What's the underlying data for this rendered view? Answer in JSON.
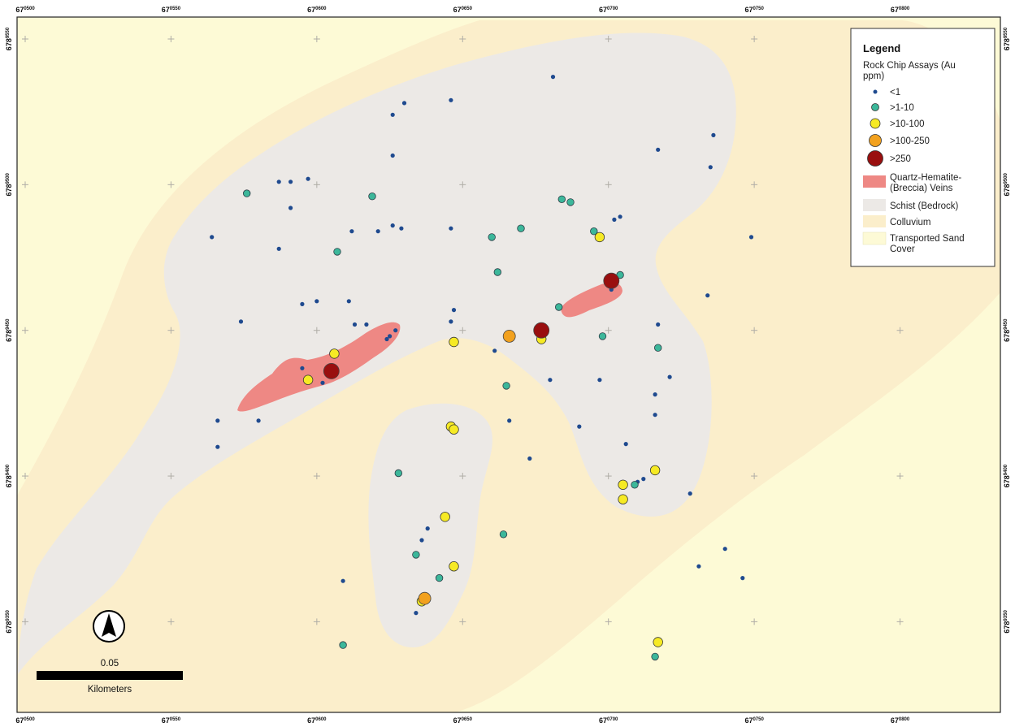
{
  "colors": {
    "sand": "#fdfad6",
    "colluvium": "#fbeecb",
    "schist": "#ece9e6",
    "veins": "#ee8884",
    "lt1": "#1f4a8f",
    "1_10": "#3cb79a",
    "10_100": "#f6ea24",
    "100_250": "#f2a11e",
    "gt250": "#990f0f"
  },
  "axes": {
    "top_ticks": [
      {
        "main": "67",
        "sup": "0500"
      },
      {
        "main": "67",
        "sup": "0550"
      },
      {
        "main": "67",
        "sup": "0600"
      },
      {
        "main": "67",
        "sup": "0650"
      },
      {
        "main": "67",
        "sup": "0700"
      },
      {
        "main": "67",
        "sup": "0750"
      },
      {
        "main": "67",
        "sup": "0800"
      }
    ],
    "bottom_ticks": [
      {
        "main": "67",
        "sup": "0500"
      },
      {
        "main": "67",
        "sup": "0550"
      },
      {
        "main": "67",
        "sup": "0600"
      },
      {
        "main": "67",
        "sup": "0650"
      },
      {
        "main": "67",
        "sup": "0700"
      },
      {
        "main": "67",
        "sup": "0750"
      },
      {
        "main": "67",
        "sup": "0800"
      }
    ],
    "side_ticks": [
      {
        "main": "678",
        "sup": "9550"
      },
      {
        "main": "678",
        "sup": "9500"
      },
      {
        "main": "678",
        "sup": "9450"
      },
      {
        "main": "678",
        "sup": "9400"
      },
      {
        "main": "678",
        "sup": "9350"
      }
    ]
  },
  "legend": {
    "title": "Legend",
    "subtitle_line1": "Rock Chip Assays (Au",
    "subtitle_line2": "ppm)",
    "classes": [
      {
        "label": "<1",
        "color_key": "lt1"
      },
      {
        "label": ">1-10",
        "color_key": "1_10"
      },
      {
        "label": ">10-100",
        "color_key": "10_100"
      },
      {
        "label": ">100-250",
        "color_key": "100_250"
      },
      {
        "label": ">250",
        "color_key": "gt250"
      }
    ],
    "veins_line1": "Quartz-Hematite-",
    "veins_line2": "(Breccia) Veins",
    "schist": "Schist (Bedrock)",
    "colluvium": "Colluvium",
    "sand_line1": "Transported Sand",
    "sand_line2": "Cover"
  },
  "scale_bar": {
    "value": "0.05",
    "unit": "Kilometers"
  },
  "north_arrow": "north-arrow-icon",
  "samples": {
    "lt1": [
      [
        67564,
        6789482
      ],
      [
        67574,
        6789453
      ],
      [
        67566,
        6789419
      ],
      [
        67566,
        6789410
      ],
      [
        67580,
        6789419
      ],
      [
        67587,
        6789501
      ],
      [
        67591,
        6789501
      ],
      [
        67597,
        6789502
      ],
      [
        67591,
        6789492
      ],
      [
        67587,
        6789478
      ],
      [
        67595,
        6789459
      ],
      [
        67600,
        6789460
      ],
      [
        67611,
        6789460
      ],
      [
        67612,
        6789484
      ],
      [
        67621,
        6789484
      ],
      [
        67626,
        6789486
      ],
      [
        67626,
        6789510
      ],
      [
        67626,
        6789524
      ],
      [
        67630,
        6789528
      ],
      [
        67646,
        6789529
      ],
      [
        67646,
        6789485
      ],
      [
        67629,
        6789485
      ],
      [
        67627,
        6789450
      ],
      [
        67625,
        6789448
      ],
      [
        67624,
        6789447
      ],
      [
        67613,
        6789452
      ],
      [
        67617,
        6789452
      ],
      [
        67595,
        6789437
      ],
      [
        67602,
        6789432
      ],
      [
        67681,
        6789537
      ],
      [
        67717,
        6789512
      ],
      [
        67736,
        6789517
      ],
      [
        67735,
        6789506
      ],
      [
        67704,
        6789489
      ],
      [
        67702,
        6789488
      ],
      [
        67749,
        6789482
      ],
      [
        67734,
        6789462
      ],
      [
        67647,
        6789457
      ],
      [
        67646,
        6789453
      ],
      [
        67661,
        6789443
      ],
      [
        67680,
        6789433
      ],
      [
        67697,
        6789433
      ],
      [
        67717,
        6789452
      ],
      [
        67721,
        6789434
      ],
      [
        67716,
        6789428
      ],
      [
        67716,
        6789421
      ],
      [
        67690,
        6789417
      ],
      [
        67706,
        6789411
      ],
      [
        67666,
        6789419
      ],
      [
        67673,
        6789406
      ],
      [
        67710,
        6789398
      ],
      [
        67712,
        6789399
      ],
      [
        67728,
        6789394
      ],
      [
        67740,
        6789375
      ],
      [
        67731,
        6789369
      ],
      [
        67746,
        6789365
      ],
      [
        67636,
        6789378
      ],
      [
        67638,
        6789382
      ],
      [
        67634,
        6789353
      ],
      [
        67609,
        6789364
      ],
      [
        67701,
        6789464
      ]
    ],
    "c1_10": [
      [
        67576,
        6789497
      ],
      [
        67607,
        6789477
      ],
      [
        67619,
        6789496
      ],
      [
        67660,
        6789482
      ],
      [
        67670,
        6789485
      ],
      [
        67684,
        6789495
      ],
      [
        67687,
        6789494
      ],
      [
        67695,
        6789484
      ],
      [
        67662,
        6789470
      ],
      [
        67704,
        6789469
      ],
      [
        67683,
        6789458
      ],
      [
        67698,
        6789448
      ],
      [
        67717,
        6789444
      ],
      [
        67665,
        6789431
      ],
      [
        67628,
        6789401
      ],
      [
        67664,
        6789380
      ],
      [
        67634,
        6789373
      ],
      [
        67647,
        6789369
      ],
      [
        67642,
        6789365
      ],
      [
        67709,
        6789397
      ],
      [
        67609,
        6789342
      ],
      [
        67716,
        6789338
      ],
      [
        67677,
        6789449
      ]
    ],
    "c10_100": [
      [
        67697,
        6789482
      ],
      [
        67606,
        6789442
      ],
      [
        67597,
        6789433
      ],
      [
        67647,
        6789446
      ],
      [
        67677,
        6789447
      ],
      [
        67646,
        6789417
      ],
      [
        67647,
        6789416
      ],
      [
        67716,
        6789402
      ],
      [
        67705,
        6789397
      ],
      [
        67705,
        6789392
      ],
      [
        67644,
        6789386
      ],
      [
        67647,
        6789369
      ],
      [
        67636,
        6789357
      ],
      [
        67717,
        6789343
      ]
    ],
    "c100_250": [
      [
        67666,
        6789448
      ],
      [
        67637,
        6789358
      ]
    ],
    "gt250": [
      [
        67605,
        6789436
      ],
      [
        67677,
        6789450
      ],
      [
        67701,
        6789467
      ]
    ]
  }
}
